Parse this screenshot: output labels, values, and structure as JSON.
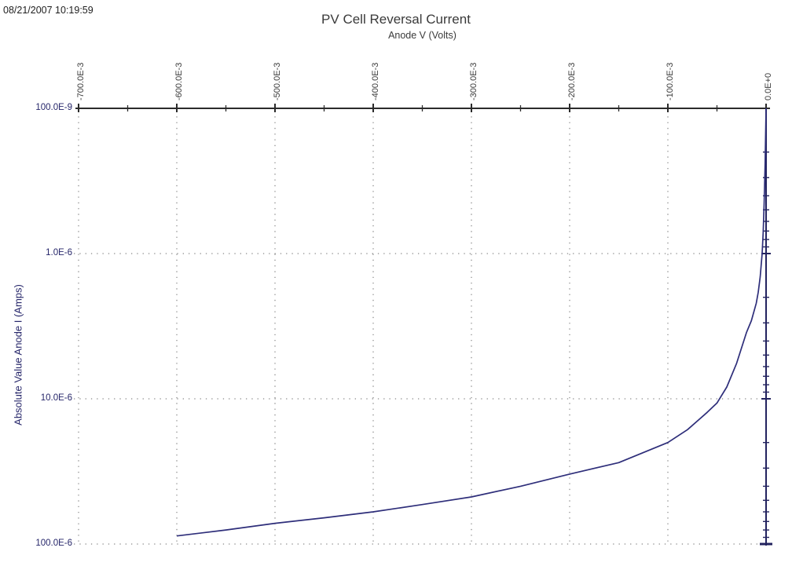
{
  "window": {
    "timestamp": "08/21/2007 10:19:59"
  },
  "chart_data": {
    "type": "line",
    "title": "PV Cell Reversal Current",
    "xlabel": "Anode V (Volts)",
    "ylabel": "Absolute Value Anode I (Amps)",
    "grid": "dotted",
    "legend": "none",
    "x_axis": {
      "position": "top",
      "scale": "linear",
      "min": -0.7,
      "max": 0,
      "minor_step": 0.05,
      "ticks": [
        {
          "label": "-700.0E-3",
          "value": -0.7
        },
        {
          "label": "-600.0E-3",
          "value": -0.6
        },
        {
          "label": "-500.0E-3",
          "value": -0.5
        },
        {
          "label": "-400.0E-3",
          "value": -0.4
        },
        {
          "label": "-300.0E-3",
          "value": -0.3
        },
        {
          "label": "-200.0E-3",
          "value": -0.2
        },
        {
          "label": "-100.0E-3",
          "value": -0.1
        },
        {
          "label": "0.0E+0",
          "value": 0
        }
      ]
    },
    "y_axis": {
      "position": "right",
      "scale": "log",
      "inverted": true,
      "min": 1e-07,
      "max": 0.0001,
      "ticks": [
        {
          "label": "100.0E-9",
          "value": 1e-07
        },
        {
          "label": "1.0E-6",
          "value": 1e-06
        },
        {
          "label": "10.0E-6",
          "value": 1e-05
        },
        {
          "label": "100.0E-6",
          "value": 0.0001
        }
      ]
    },
    "series": [
      {
        "name": "Anode I",
        "color": "#2e2e7a",
        "points": [
          [
            0,
            1e-07
          ],
          [
            -0.001,
            2.4e-07
          ],
          [
            -0.002,
            4.6e-07
          ],
          [
            -0.003,
            7.2e-07
          ],
          [
            -0.004,
            1e-06
          ],
          [
            -0.006,
            1.45e-06
          ],
          [
            -0.008,
            1.85e-06
          ],
          [
            -0.01,
            2.2e-06
          ],
          [
            -0.015,
            2.9e-06
          ],
          [
            -0.02,
            3.5e-06
          ],
          [
            -0.03,
            5.7e-06
          ],
          [
            -0.04,
            8.3e-06
          ],
          [
            -0.05,
            1.07e-05
          ],
          [
            -0.06,
            1.24e-05
          ],
          [
            -0.08,
            1.63e-05
          ],
          [
            -0.1,
            2e-05
          ],
          [
            -0.15,
            2.75e-05
          ],
          [
            -0.2,
            3.3e-05
          ],
          [
            -0.25,
            4e-05
          ],
          [
            -0.3,
            4.74e-05
          ],
          [
            -0.35,
            5.35e-05
          ],
          [
            -0.4,
            6e-05
          ],
          [
            -0.45,
            6.6e-05
          ],
          [
            -0.5,
            7.2e-05
          ],
          [
            -0.55,
            8e-05
          ],
          [
            -0.6,
            8.8e-05
          ]
        ]
      }
    ]
  },
  "colors": {
    "background": "#ffffff",
    "x_axis": "#2b2b2b",
    "y_axis": "#23235f",
    "curve": "#2e2e7a",
    "grid": "#6b6b6b",
    "x_labels": "#3a3a3a",
    "y_labels": "#26266a"
  }
}
